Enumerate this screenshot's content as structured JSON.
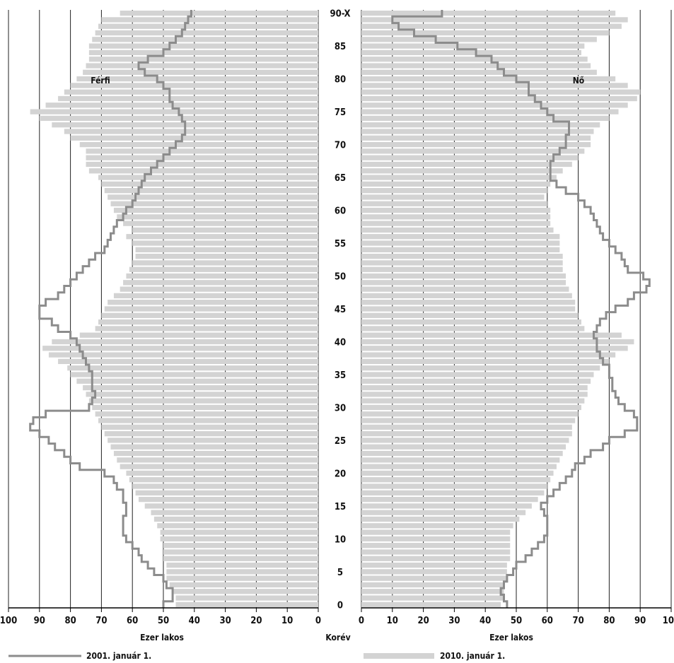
{
  "chart_data": {
    "type": "bar",
    "title": "",
    "left_panel_label": "Férfi",
    "right_panel_label": "Nő",
    "xlabel_left": "Ezer lakos",
    "xlabel_right": "Ezer lakos",
    "center_axis_label": "Korév",
    "xlim": [
      0,
      100
    ],
    "x_ticks": [
      0,
      10,
      20,
      30,
      40,
      50,
      60,
      70,
      80,
      90,
      100
    ],
    "age_tick_labels": [
      "0",
      "5",
      "10",
      "15",
      "20",
      "25",
      "30",
      "35",
      "40",
      "45",
      "50",
      "55",
      "60",
      "65",
      "70",
      "75",
      "80",
      "85",
      "90-X"
    ],
    "grid": true,
    "legend_position": "bottom",
    "categories": [
      "0",
      "1",
      "2",
      "3",
      "4",
      "5",
      "6",
      "7",
      "8",
      "9",
      "10",
      "11",
      "12",
      "13",
      "14",
      "15",
      "16",
      "17",
      "18",
      "19",
      "20",
      "21",
      "22",
      "23",
      "24",
      "25",
      "26",
      "27",
      "28",
      "29",
      "30",
      "31",
      "32",
      "33",
      "34",
      "35",
      "36",
      "37",
      "38",
      "39",
      "40",
      "41",
      "42",
      "43",
      "44",
      "45",
      "46",
      "47",
      "48",
      "49",
      "50",
      "51",
      "52",
      "53",
      "54",
      "55",
      "56",
      "57",
      "58",
      "59",
      "60",
      "61",
      "62",
      "63",
      "64",
      "65",
      "66",
      "67",
      "68",
      "69",
      "70",
      "71",
      "72",
      "73",
      "74",
      "75",
      "76",
      "77",
      "78",
      "79",
      "80",
      "81",
      "82",
      "83",
      "84",
      "85",
      "86",
      "87",
      "88",
      "89",
      "90-X"
    ],
    "series": [
      {
        "name": "2001. január 1.",
        "style": "line",
        "color": "#8c8c8c",
        "male": [
          50,
          47,
          47,
          49,
          50,
          53,
          55,
          57,
          58,
          60,
          62,
          63,
          63,
          63,
          62,
          62,
          63,
          63,
          65,
          66,
          69,
          77,
          80,
          82,
          85,
          87,
          90,
          93,
          92,
          88,
          74,
          73,
          72,
          73,
          73,
          73,
          74,
          75,
          76,
          77,
          78,
          80,
          84,
          86,
          90,
          90,
          88,
          84,
          82,
          80,
          78,
          76,
          74,
          72,
          69,
          68,
          67,
          66,
          65,
          63,
          62,
          60,
          59,
          58,
          57,
          56,
          54,
          52,
          50,
          48,
          46,
          44,
          43,
          43,
          44,
          45,
          47,
          48,
          48,
          50,
          52,
          56,
          58,
          55,
          50,
          48,
          46,
          44,
          43,
          42,
          41
        ],
        "female": [
          47,
          46,
          45,
          46,
          47,
          49,
          50,
          53,
          55,
          57,
          59,
          60,
          60,
          60,
          59,
          58,
          60,
          62,
          64,
          66,
          68,
          69,
          72,
          74,
          78,
          80,
          85,
          89,
          89,
          88,
          85,
          83,
          82,
          81,
          81,
          80,
          80,
          78,
          77,
          76,
          76,
          75,
          76,
          77,
          79,
          82,
          86,
          88,
          92,
          93,
          91,
          86,
          85,
          84,
          82,
          80,
          78,
          77,
          76,
          75,
          74,
          72,
          70,
          66,
          63,
          61,
          61,
          61,
          62,
          64,
          66,
          66,
          67,
          67,
          62,
          60,
          58,
          56,
          54,
          54,
          50,
          46,
          44,
          42,
          37,
          31,
          24,
          17,
          12,
          10,
          26
        ],
        "male_note": "",
        "female_note": ""
      },
      {
        "name": "2010. január 1.",
        "style": "bar",
        "color": "#d3d3d3",
        "male": [
          46,
          46,
          47,
          48,
          49,
          49,
          49,
          50,
          50,
          50,
          51,
          51,
          52,
          53,
          54,
          56,
          58,
          59,
          60,
          61,
          62,
          64,
          65,
          66,
          67,
          68,
          69,
          70,
          71,
          72,
          73,
          74,
          75,
          76,
          78,
          80,
          81,
          84,
          87,
          89,
          86,
          77,
          72,
          71,
          70,
          69,
          68,
          66,
          64,
          63,
          62,
          61,
          60,
          59,
          59,
          60,
          62,
          60,
          63,
          65,
          66,
          67,
          68,
          69,
          70,
          71,
          74,
          75,
          75,
          75,
          77,
          80,
          82,
          86,
          90,
          93,
          88,
          84,
          82,
          80,
          78,
          76,
          75,
          74,
          74,
          74,
          73,
          72,
          71,
          70,
          64
        ],
        "female": [
          45,
          46,
          46,
          46,
          47,
          47,
          47,
          48,
          48,
          48,
          48,
          48,
          49,
          51,
          53,
          55,
          57,
          59,
          60,
          61,
          62,
          63,
          64,
          65,
          66,
          67,
          68,
          68,
          69,
          70,
          71,
          72,
          73,
          73,
          74,
          75,
          77,
          80,
          82,
          86,
          88,
          84,
          72,
          71,
          70,
          69,
          69,
          68,
          67,
          66,
          66,
          65,
          65,
          65,
          64,
          64,
          64,
          62,
          61,
          61,
          61,
          60,
          59,
          60,
          61,
          63,
          65,
          68,
          70,
          72,
          74,
          74,
          75,
          77,
          80,
          83,
          86,
          89,
          90,
          86,
          82,
          76,
          74,
          73,
          71,
          72,
          76,
          80,
          84,
          86,
          82
        ],
        "male_note": "",
        "female_note": ""
      }
    ]
  },
  "legend": {
    "items": [
      {
        "label": "2001. január 1.",
        "color": "#8c8c8c",
        "kind": "line"
      },
      {
        "label": "2010. január 1.",
        "color": "#d3d3d3",
        "kind": "bar"
      }
    ]
  }
}
